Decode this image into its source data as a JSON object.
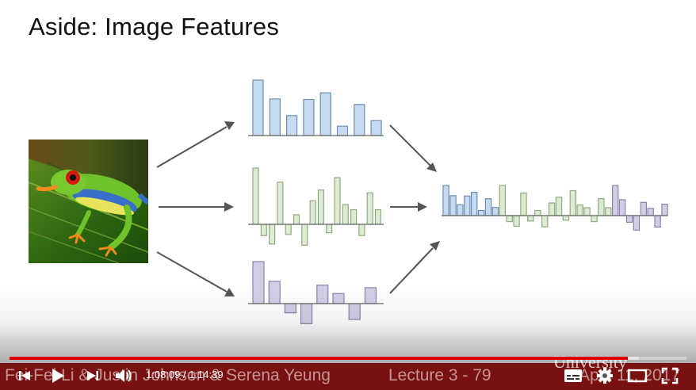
{
  "slide": {
    "title": "Aside: Image Features",
    "footer": "Fei-Fei Li & Justin Johnson & Serena Yeung",
    "lecture": "Lecture 3 -   79",
    "date": "April 11, 2017",
    "watermark": "University"
  },
  "figure": {
    "histograms": [
      {
        "name": "feature-hist-1",
        "color": "blue",
        "values": [
          10,
          6.6,
          3.6,
          6.5,
          7.7,
          1.7,
          5.6,
          2.7
        ]
      },
      {
        "name": "feature-hist-2",
        "color": "green",
        "values": [
          10,
          -2,
          -3.5,
          7.5,
          -1.8,
          1.7,
          -3.7,
          4.2,
          6.1,
          -1.5,
          8.3,
          3.5,
          2.6,
          -2,
          5.6,
          2.6
        ]
      },
      {
        "name": "feature-hist-3",
        "color": "purple",
        "values": [
          10,
          5.3,
          -2.2,
          -4.8,
          4.4,
          2.4,
          -3.8,
          3.8
        ]
      }
    ]
  },
  "player": {
    "time": "1:08:09 / 1:14:39",
    "progress": 0.913,
    "buffered": 0.93,
    "colors": {
      "accent": "#e00000",
      "banner": "#7a1111"
    },
    "icons": [
      "previous-icon",
      "play-icon",
      "next-icon",
      "volume-icon",
      "subtitles-icon",
      "settings-icon",
      "theater-icon",
      "fullscreen-icon"
    ]
  }
}
